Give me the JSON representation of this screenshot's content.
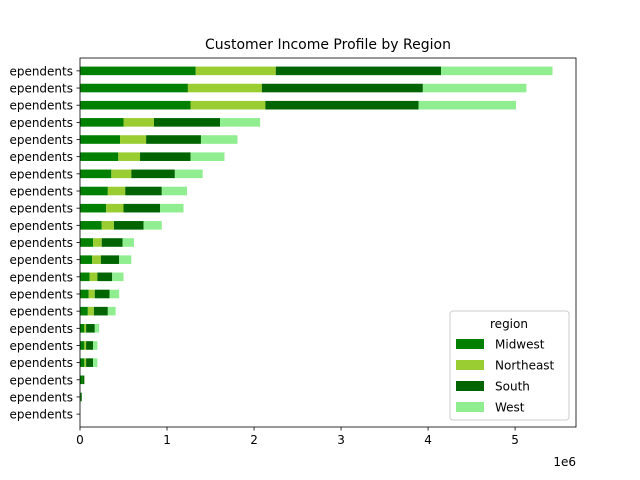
{
  "chart_data": {
    "type": "bar",
    "orientation": "horizontal",
    "stacked": true,
    "title": "Customer Income Profile by Region",
    "xlabel": "",
    "ylabel": "",
    "x_offset_label": "1e6",
    "xlim": [
      0,
      5700000
    ],
    "x_ticks": [
      0,
      1000000,
      2000000,
      3000000,
      4000000,
      5000000
    ],
    "x_tick_labels": [
      "0",
      "1",
      "2",
      "3",
      "4",
      "5"
    ],
    "grid": false,
    "categories": [
      "ependents",
      "ependents",
      "ependents",
      "ependents",
      "ependents",
      "ependents",
      "ependents",
      "ependents",
      "ependents",
      "ependents",
      "ependents",
      "ependents",
      "ependents",
      "ependents",
      "ependents",
      "ependents",
      "ependents",
      "ependents",
      "ependents",
      "ependents",
      "ependents"
    ],
    "series": [
      {
        "name": "Midwest",
        "color": "#008000",
        "values": [
          1330000,
          1240000,
          1270000,
          500000,
          460000,
          440000,
          360000,
          320000,
          300000,
          250000,
          150000,
          140000,
          110000,
          100000,
          90000,
          50000,
          50000,
          50000,
          30000,
          10000,
          0
        ]
      },
      {
        "name": "Northeast",
        "color": "#9acd32",
        "values": [
          920000,
          850000,
          860000,
          350000,
          300000,
          250000,
          230000,
          200000,
          200000,
          140000,
          100000,
          100000,
          90000,
          70000,
          70000,
          20000,
          20000,
          20000,
          0,
          0,
          0
        ]
      },
      {
        "name": "South",
        "color": "#006400",
        "values": [
          1900000,
          1850000,
          1760000,
          760000,
          630000,
          580000,
          500000,
          420000,
          420000,
          340000,
          240000,
          210000,
          170000,
          170000,
          160000,
          100000,
          80000,
          80000,
          20000,
          10000,
          0
        ]
      },
      {
        "name": "West",
        "color": "#90ee90",
        "values": [
          1280000,
          1190000,
          1120000,
          460000,
          420000,
          390000,
          320000,
          290000,
          270000,
          210000,
          130000,
          140000,
          130000,
          110000,
          90000,
          50000,
          50000,
          50000,
          0,
          0,
          0
        ]
      }
    ],
    "legend": {
      "title": "region",
      "position": "lower-right"
    }
  }
}
